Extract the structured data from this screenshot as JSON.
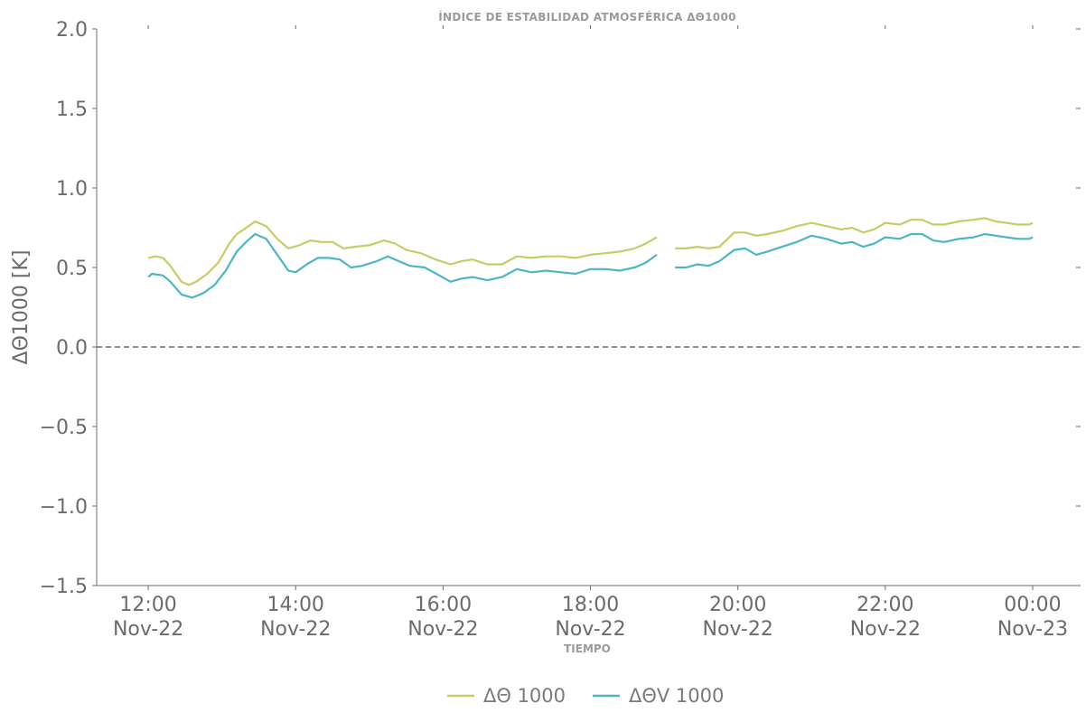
{
  "chart_data": {
    "type": "line",
    "title": "ÍNDICE DE ESTABILIDAD ATMOSFÉRICA ΔΘ1000",
    "xlabel": "TIEMPO",
    "ylabel": "ΔΘ1000 [K]",
    "ylim": [
      -1.5,
      2.0
    ],
    "xlim_hours": [
      11.3,
      24.65
    ],
    "yticks": [
      {
        "value": -1.5,
        "label": "−1.5"
      },
      {
        "value": -1.0,
        "label": "−1.0"
      },
      {
        "value": -0.5,
        "label": "−0.5"
      },
      {
        "value": 0.0,
        "label": "0.0"
      },
      {
        "value": 0.5,
        "label": "0.5"
      },
      {
        "value": 1.0,
        "label": "1.0"
      },
      {
        "value": 1.5,
        "label": "1.5"
      },
      {
        "value": 2.0,
        "label": "2.0"
      }
    ],
    "xticks": [
      {
        "hour": 12,
        "time": "12:00",
        "date": "Nov-22"
      },
      {
        "hour": 14,
        "time": "14:00",
        "date": "Nov-22"
      },
      {
        "hour": 16,
        "time": "16:00",
        "date": "Nov-22"
      },
      {
        "hour": 18,
        "time": "18:00",
        "date": "Nov-22"
      },
      {
        "hour": 20,
        "time": "20:00",
        "date": "Nov-22"
      },
      {
        "hour": 22,
        "time": "22:00",
        "date": "Nov-22"
      },
      {
        "hour": 24,
        "time": "00:00",
        "date": "Nov-23"
      }
    ],
    "reference_line": {
      "value": 0.0,
      "style": "dashed"
    },
    "grid": false,
    "legend_position": "bottom-center",
    "series": [
      {
        "name": "ΔΘ 1000",
        "color": "#c8cc66",
        "segments": [
          [
            [
              12.0,
              0.56
            ],
            [
              12.1,
              0.57
            ],
            [
              12.2,
              0.56
            ],
            [
              12.3,
              0.51
            ],
            [
              12.45,
              0.41
            ],
            [
              12.55,
              0.39
            ],
            [
              12.65,
              0.41
            ],
            [
              12.8,
              0.46
            ],
            [
              12.95,
              0.53
            ],
            [
              13.1,
              0.65
            ],
            [
              13.2,
              0.71
            ],
            [
              13.3,
              0.74
            ],
            [
              13.45,
              0.79
            ],
            [
              13.6,
              0.76
            ],
            [
              13.75,
              0.68
            ],
            [
              13.9,
              0.62
            ],
            [
              14.05,
              0.64
            ],
            [
              14.2,
              0.67
            ],
            [
              14.35,
              0.66
            ],
            [
              14.5,
              0.66
            ],
            [
              14.65,
              0.62
            ],
            [
              14.8,
              0.63
            ],
            [
              15.0,
              0.64
            ],
            [
              15.2,
              0.67
            ],
            [
              15.35,
              0.65
            ],
            [
              15.5,
              0.61
            ],
            [
              15.7,
              0.59
            ],
            [
              15.9,
              0.55
            ],
            [
              16.1,
              0.52
            ],
            [
              16.25,
              0.54
            ],
            [
              16.4,
              0.55
            ],
            [
              16.6,
              0.52
            ],
            [
              16.8,
              0.52
            ],
            [
              17.0,
              0.57
            ],
            [
              17.2,
              0.56
            ],
            [
              17.4,
              0.57
            ],
            [
              17.6,
              0.57
            ],
            [
              17.8,
              0.56
            ],
            [
              18.0,
              0.58
            ],
            [
              18.2,
              0.59
            ],
            [
              18.4,
              0.6
            ],
            [
              18.6,
              0.62
            ],
            [
              18.75,
              0.65
            ],
            [
              18.9,
              0.69
            ]
          ],
          [
            [
              19.15,
              0.62
            ],
            [
              19.3,
              0.62
            ],
            [
              19.45,
              0.63
            ],
            [
              19.6,
              0.62
            ],
            [
              19.75,
              0.63
            ],
            [
              19.95,
              0.72
            ],
            [
              20.1,
              0.72
            ],
            [
              20.25,
              0.7
            ],
            [
              20.4,
              0.71
            ],
            [
              20.6,
              0.73
            ],
            [
              20.8,
              0.76
            ],
            [
              21.0,
              0.78
            ],
            [
              21.2,
              0.76
            ],
            [
              21.4,
              0.74
            ],
            [
              21.55,
              0.75
            ],
            [
              21.7,
              0.72
            ],
            [
              21.85,
              0.74
            ],
            [
              22.0,
              0.78
            ],
            [
              22.2,
              0.77
            ],
            [
              22.35,
              0.8
            ],
            [
              22.5,
              0.8
            ],
            [
              22.65,
              0.77
            ],
            [
              22.8,
              0.77
            ],
            [
              23.0,
              0.79
            ],
            [
              23.2,
              0.8
            ],
            [
              23.35,
              0.81
            ],
            [
              23.5,
              0.79
            ],
            [
              23.65,
              0.78
            ],
            [
              23.8,
              0.77
            ],
            [
              23.95,
              0.77
            ],
            [
              24.0,
              0.78
            ]
          ]
        ]
      },
      {
        "name": "ΔΘV 1000",
        "color": "#4db5c4",
        "segments": [
          [
            [
              12.0,
              0.44
            ],
            [
              12.05,
              0.46
            ],
            [
              12.2,
              0.45
            ],
            [
              12.3,
              0.41
            ],
            [
              12.45,
              0.33
            ],
            [
              12.6,
              0.31
            ],
            [
              12.75,
              0.34
            ],
            [
              12.9,
              0.39
            ],
            [
              13.05,
              0.48
            ],
            [
              13.2,
              0.6
            ],
            [
              13.35,
              0.67
            ],
            [
              13.45,
              0.71
            ],
            [
              13.6,
              0.68
            ],
            [
              13.75,
              0.58
            ],
            [
              13.9,
              0.48
            ],
            [
              14.0,
              0.47
            ],
            [
              14.15,
              0.52
            ],
            [
              14.3,
              0.56
            ],
            [
              14.45,
              0.56
            ],
            [
              14.6,
              0.55
            ],
            [
              14.75,
              0.5
            ],
            [
              14.9,
              0.51
            ],
            [
              15.1,
              0.54
            ],
            [
              15.25,
              0.57
            ],
            [
              15.4,
              0.54
            ],
            [
              15.55,
              0.51
            ],
            [
              15.75,
              0.5
            ],
            [
              15.95,
              0.45
            ],
            [
              16.1,
              0.41
            ],
            [
              16.25,
              0.43
            ],
            [
              16.4,
              0.44
            ],
            [
              16.6,
              0.42
            ],
            [
              16.8,
              0.44
            ],
            [
              17.0,
              0.49
            ],
            [
              17.2,
              0.47
            ],
            [
              17.4,
              0.48
            ],
            [
              17.6,
              0.47
            ],
            [
              17.8,
              0.46
            ],
            [
              18.0,
              0.49
            ],
            [
              18.2,
              0.49
            ],
            [
              18.4,
              0.48
            ],
            [
              18.6,
              0.5
            ],
            [
              18.75,
              0.53
            ],
            [
              18.9,
              0.58
            ]
          ],
          [
            [
              19.15,
              0.5
            ],
            [
              19.3,
              0.5
            ],
            [
              19.45,
              0.52
            ],
            [
              19.6,
              0.51
            ],
            [
              19.75,
              0.54
            ],
            [
              19.95,
              0.61
            ],
            [
              20.1,
              0.62
            ],
            [
              20.25,
              0.58
            ],
            [
              20.4,
              0.6
            ],
            [
              20.6,
              0.63
            ],
            [
              20.8,
              0.66
            ],
            [
              21.0,
              0.7
            ],
            [
              21.2,
              0.68
            ],
            [
              21.4,
              0.65
            ],
            [
              21.55,
              0.66
            ],
            [
              21.7,
              0.63
            ],
            [
              21.85,
              0.65
            ],
            [
              22.0,
              0.69
            ],
            [
              22.2,
              0.68
            ],
            [
              22.35,
              0.71
            ],
            [
              22.5,
              0.71
            ],
            [
              22.65,
              0.67
            ],
            [
              22.8,
              0.66
            ],
            [
              23.0,
              0.68
            ],
            [
              23.2,
              0.69
            ],
            [
              23.35,
              0.71
            ],
            [
              23.5,
              0.7
            ],
            [
              23.65,
              0.69
            ],
            [
              23.8,
              0.68
            ],
            [
              23.95,
              0.68
            ],
            [
              24.0,
              0.69
            ]
          ]
        ]
      }
    ]
  }
}
